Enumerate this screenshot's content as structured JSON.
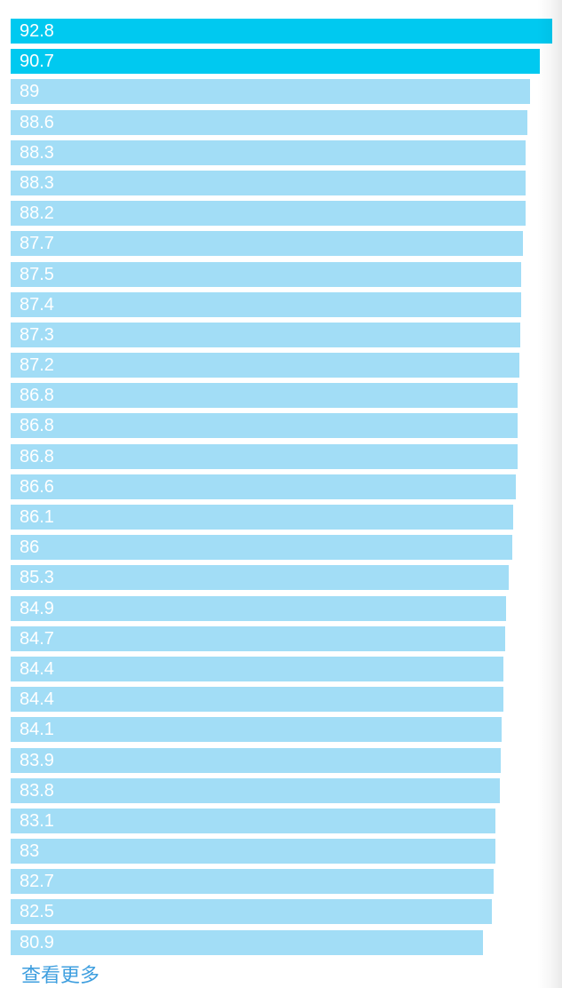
{
  "chart_data": {
    "type": "bar",
    "orientation": "horizontal",
    "title": "",
    "xlabel": "",
    "ylabel": "",
    "xlim": [
      0,
      92.8
    ],
    "grid": false,
    "legend": false,
    "value_labels_position": "inside-left",
    "highlighted_indices": [
      0,
      1
    ],
    "bars": [
      {
        "label": "92.8",
        "value": 92.8,
        "highlighted": true
      },
      {
        "label": "90.7",
        "value": 90.7,
        "highlighted": true
      },
      {
        "label": "89",
        "value": 89,
        "highlighted": false
      },
      {
        "label": "88.6",
        "value": 88.6,
        "highlighted": false
      },
      {
        "label": "88.3",
        "value": 88.3,
        "highlighted": false
      },
      {
        "label": "88.3",
        "value": 88.3,
        "highlighted": false
      },
      {
        "label": "88.2",
        "value": 88.2,
        "highlighted": false
      },
      {
        "label": "87.7",
        "value": 87.7,
        "highlighted": false
      },
      {
        "label": "87.5",
        "value": 87.5,
        "highlighted": false
      },
      {
        "label": "87.4",
        "value": 87.4,
        "highlighted": false
      },
      {
        "label": "87.3",
        "value": 87.3,
        "highlighted": false
      },
      {
        "label": "87.2",
        "value": 87.2,
        "highlighted": false
      },
      {
        "label": "86.8",
        "value": 86.8,
        "highlighted": false
      },
      {
        "label": "86.8",
        "value": 86.8,
        "highlighted": false
      },
      {
        "label": "86.8",
        "value": 86.8,
        "highlighted": false
      },
      {
        "label": "86.6",
        "value": 86.6,
        "highlighted": false
      },
      {
        "label": "86.1",
        "value": 86.1,
        "highlighted": false
      },
      {
        "label": "86",
        "value": 86,
        "highlighted": false
      },
      {
        "label": "85.3",
        "value": 85.3,
        "highlighted": false
      },
      {
        "label": "84.9",
        "value": 84.9,
        "highlighted": false
      },
      {
        "label": "84.7",
        "value": 84.7,
        "highlighted": false
      },
      {
        "label": "84.4",
        "value": 84.4,
        "highlighted": false
      },
      {
        "label": "84.4",
        "value": 84.4,
        "highlighted": false
      },
      {
        "label": "84.1",
        "value": 84.1,
        "highlighted": false
      },
      {
        "label": "83.9",
        "value": 83.9,
        "highlighted": false
      },
      {
        "label": "83.8",
        "value": 83.8,
        "highlighted": false
      },
      {
        "label": "83.1",
        "value": 83.1,
        "highlighted": false
      },
      {
        "label": "83",
        "value": 83,
        "highlighted": false
      },
      {
        "label": "82.7",
        "value": 82.7,
        "highlighted": false
      },
      {
        "label": "82.5",
        "value": 82.5,
        "highlighted": false
      },
      {
        "label": "80.9",
        "value": 80.9,
        "highlighted": false
      }
    ]
  },
  "footer": {
    "more_link": "查看更多"
  },
  "colors": {
    "bar_normal": "#a2ddf6",
    "bar_highlight": "#00c9f0",
    "bar_label": "#ffffff",
    "link": "#3f9fdf",
    "background": "#ffffff"
  }
}
